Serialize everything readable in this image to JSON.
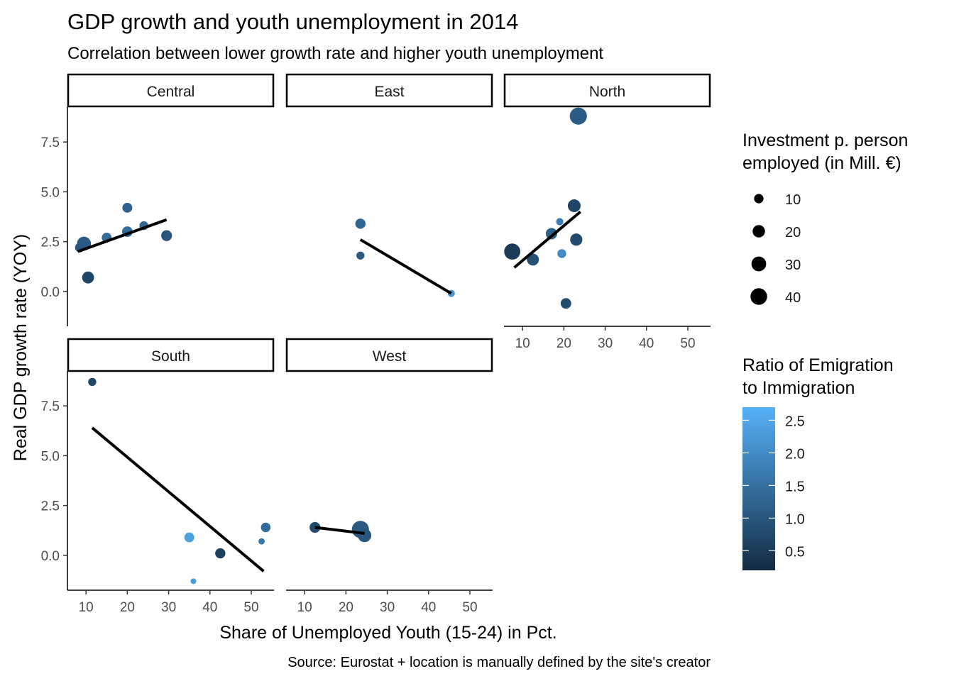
{
  "chart_data": {
    "type": "scatter",
    "title": "GDP growth and youth unemployment in 2014",
    "subtitle": "Correlation between lower growth rate and higher youth unemployment",
    "xlabel": "Share of Unemployed Youth (15-24) in Pct.",
    "ylabel": "Real GDP growth rate (YOY)",
    "caption": "Source: Eurostat + location is manually defined by the site's creator",
    "xlim": [
      5.5,
      55.5
    ],
    "ylim": [
      -1.75,
      9.25
    ],
    "x_ticks": [
      10,
      20,
      30,
      40,
      50
    ],
    "y_ticks": [
      0.0,
      2.5,
      5.0,
      7.5
    ],
    "x_tick_labels": [
      "10",
      "20",
      "30",
      "40",
      "50"
    ],
    "y_tick_labels": [
      "0.0",
      "2.5",
      "5.0",
      "7.5"
    ],
    "colors": {
      "line": "#000000",
      "strip_border": "#000000",
      "axis": "#000000",
      "color_low": "#132B43",
      "color_high": "#56B1F7"
    },
    "facets": [
      {
        "name": "Central",
        "points": [
          {
            "x": 8.5,
            "y": 2.2,
            "size": 14,
            "ratio": 1.0
          },
          {
            "x": 9.5,
            "y": 2.4,
            "size": 30,
            "ratio": 1.1
          },
          {
            "x": 10.5,
            "y": 0.7,
            "size": 22,
            "ratio": 0.7
          },
          {
            "x": 15.0,
            "y": 2.7,
            "size": 15,
            "ratio": 1.4
          },
          {
            "x": 20.0,
            "y": 4.2,
            "size": 15,
            "ratio": 1.2
          },
          {
            "x": 20.0,
            "y": 3.0,
            "size": 17,
            "ratio": 1.4
          },
          {
            "x": 24.0,
            "y": 3.3,
            "size": 12,
            "ratio": 1.3
          },
          {
            "x": 29.5,
            "y": 2.8,
            "size": 18,
            "ratio": 1.0
          }
        ],
        "fit": {
          "x": [
            8.0,
            29.5
          ],
          "y": [
            2.0,
            3.6
          ]
        }
      },
      {
        "name": "East",
        "points": [
          {
            "x": 23.5,
            "y": 3.4,
            "size": 16,
            "ratio": 1.3
          },
          {
            "x": 23.5,
            "y": 1.8,
            "size": 10,
            "ratio": 1.1
          },
          {
            "x": 45.5,
            "y": -0.1,
            "size": 8,
            "ratio": 2.2
          }
        ],
        "fit": {
          "x": [
            23.5,
            45.5
          ],
          "y": [
            2.6,
            -0.1
          ]
        }
      },
      {
        "name": "North",
        "points": [
          {
            "x": 23.5,
            "y": 8.8,
            "size": 45,
            "ratio": 1.1
          },
          {
            "x": 22.5,
            "y": 4.3,
            "size": 25,
            "ratio": 0.7
          },
          {
            "x": 7.5,
            "y": 2.0,
            "size": 40,
            "ratio": 0.5
          },
          {
            "x": 12.5,
            "y": 1.6,
            "size": 22,
            "ratio": 0.9
          },
          {
            "x": 17.0,
            "y": 2.9,
            "size": 20,
            "ratio": 1.2
          },
          {
            "x": 19.0,
            "y": 3.5,
            "size": 8,
            "ratio": 1.7
          },
          {
            "x": 19.5,
            "y": 1.9,
            "size": 12,
            "ratio": 2.0
          },
          {
            "x": 23.0,
            "y": 2.6,
            "size": 23,
            "ratio": 0.8
          },
          {
            "x": 20.5,
            "y": -0.6,
            "size": 17,
            "ratio": 0.8
          }
        ],
        "fit": {
          "x": [
            8.0,
            24.0
          ],
          "y": [
            1.2,
            4.0
          ]
        }
      },
      {
        "name": "South",
        "points": [
          {
            "x": 11.5,
            "y": 8.7,
            "size": 10,
            "ratio": 0.7
          },
          {
            "x": 35.0,
            "y": 0.9,
            "size": 15,
            "ratio": 2.4
          },
          {
            "x": 36.0,
            "y": -1.3,
            "size": 5,
            "ratio": 2.3
          },
          {
            "x": 42.5,
            "y": 0.1,
            "size": 16,
            "ratio": 0.6
          },
          {
            "x": 52.5,
            "y": 0.7,
            "size": 6,
            "ratio": 1.6
          },
          {
            "x": 53.5,
            "y": 1.4,
            "size": 14,
            "ratio": 1.4
          }
        ],
        "fit": {
          "x": [
            11.5,
            53.0
          ],
          "y": [
            6.4,
            -0.8
          ]
        }
      },
      {
        "name": "West",
        "points": [
          {
            "x": 12.5,
            "y": 1.4,
            "size": 18,
            "ratio": 0.8
          },
          {
            "x": 23.5,
            "y": 1.3,
            "size": 45,
            "ratio": 1.1
          },
          {
            "x": 24.5,
            "y": 1.0,
            "size": 28,
            "ratio": 1.0
          }
        ],
        "fit": {
          "x": [
            12.5,
            24.5
          ],
          "y": [
            1.4,
            1.1
          ]
        }
      }
    ],
    "legend": {
      "size": {
        "title_lines": [
          "Investment p. person",
          " employed (in Mill. €)"
        ],
        "values": [
          10,
          20,
          30,
          40
        ],
        "labels": [
          "10",
          "20",
          "30",
          "40"
        ]
      },
      "color": {
        "title_lines": [
          "Ratio of Emigration",
          " to Immigration"
        ],
        "range": [
          0.2,
          2.7
        ],
        "breaks": [
          0.5,
          1.0,
          1.5,
          2.0,
          2.5
        ],
        "labels": [
          "0.5",
          "1.0",
          "1.5",
          "2.0",
          "2.5"
        ]
      }
    }
  }
}
